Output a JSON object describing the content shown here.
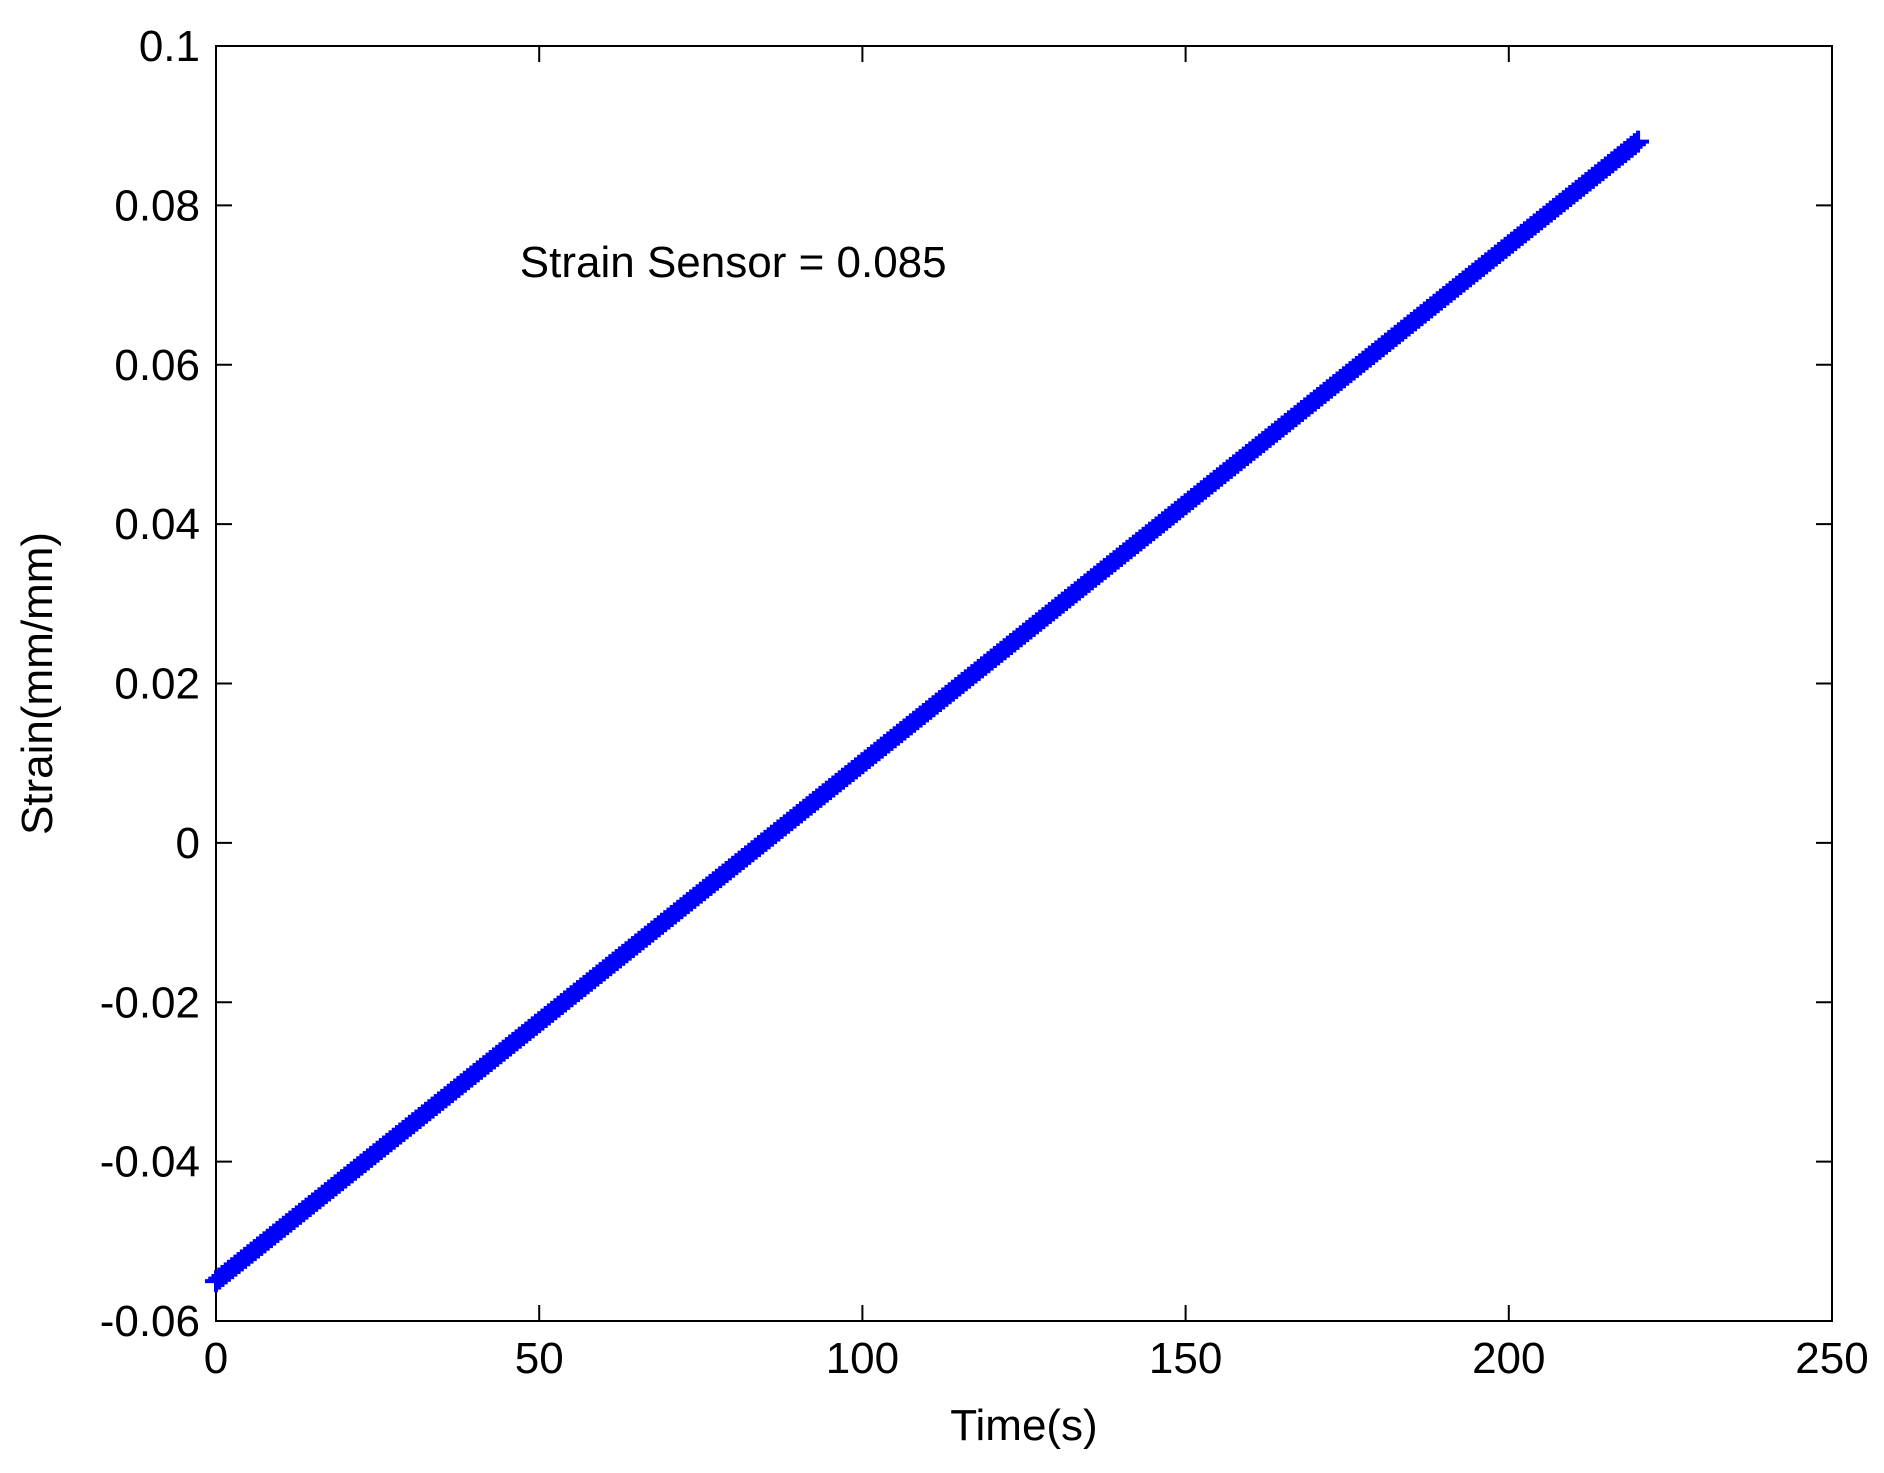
{
  "chart_data": {
    "type": "scatter",
    "title": "",
    "xlabel": "Time(s)",
    "ylabel": "Strain(mm/mm)",
    "xlim": [
      0,
      250
    ],
    "ylim": [
      -0.06,
      0.1
    ],
    "xticks": [
      0,
      50,
      100,
      150,
      200,
      250
    ],
    "xtick_labels": [
      "0",
      "50",
      "100",
      "150",
      "200",
      "250"
    ],
    "yticks": [
      -0.06,
      -0.04,
      -0.02,
      0,
      0.02,
      0.04,
      0.06,
      0.08,
      0.1
    ],
    "ytick_labels": [
      "-0.06",
      "-0.04",
      "-0.02",
      "0",
      "0.02",
      "0.04",
      "0.06",
      "0.08",
      "0.1"
    ],
    "grid": false,
    "marker": "+",
    "series_color": "#0000ff",
    "series": [
      {
        "x": [
          0,
          220
        ],
        "y": [
          -0.055,
          0.088
        ],
        "sample_interval_s": 0.5
      }
    ],
    "annotations": [
      {
        "text": "Strain Sensor = 0.085",
        "x": 47,
        "y": 0.071
      }
    ]
  }
}
